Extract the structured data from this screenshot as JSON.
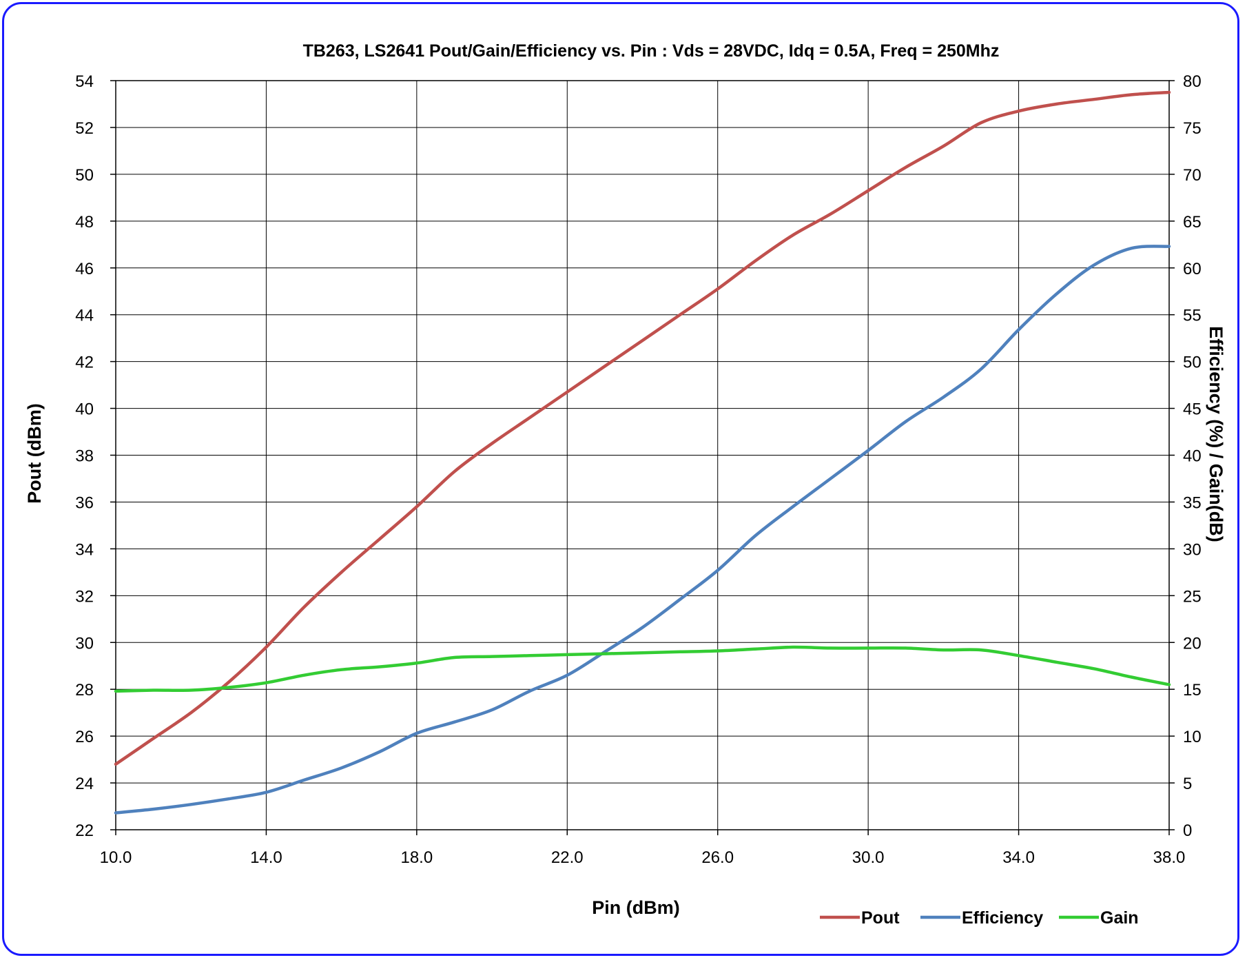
{
  "chart_data": {
    "type": "line",
    "title": "TB263, LS2641 Pout/Gain/Efficiency vs. Pin : Vds = 28VDC, Idq = 0.5A, Freq = 250Mhz",
    "xlabel": "Pin (dBm)",
    "ylabel": "Pout (dBm)",
    "y2label": "Efficiency (%) / Gain(dB)",
    "xlim": [
      10,
      38
    ],
    "ylim": [
      22,
      54
    ],
    "y2lim": [
      0,
      80
    ],
    "grid": true,
    "legend_position": "bottom-right",
    "x_ticks": [
      "10.0",
      "14.0",
      "18.0",
      "22.0",
      "26.0",
      "30.0",
      "34.0",
      "38.0"
    ],
    "y_ticks": [
      "22",
      "24",
      "26",
      "28",
      "30",
      "32",
      "34",
      "36",
      "38",
      "40",
      "42",
      "44",
      "46",
      "48",
      "50",
      "52",
      "54"
    ],
    "y2_ticks": [
      "0",
      "5",
      "10",
      "15",
      "20",
      "25",
      "30",
      "35",
      "40",
      "45",
      "50",
      "55",
      "60",
      "65",
      "70",
      "75",
      "80"
    ],
    "series": [
      {
        "name": "Pout",
        "axis": "left",
        "color": "#c0504d",
        "x": [
          10,
          11,
          12,
          13,
          14,
          15,
          16,
          17,
          18,
          19,
          20,
          21,
          22,
          23,
          24,
          25,
          26,
          27,
          28,
          29,
          30,
          31,
          32,
          33,
          34,
          35,
          36,
          37,
          38
        ],
        "values": [
          24.8,
          25.9,
          27.0,
          28.3,
          29.8,
          31.5,
          33.0,
          34.4,
          35.8,
          37.3,
          38.5,
          39.6,
          40.7,
          41.8,
          42.9,
          44.0,
          45.1,
          46.3,
          47.4,
          48.3,
          49.3,
          50.3,
          51.2,
          52.2,
          52.7,
          53.0,
          53.2,
          53.4,
          53.5
        ]
      },
      {
        "name": "Efficiency",
        "axis": "right",
        "color": "#4f81bd",
        "x": [
          10,
          11,
          12,
          13,
          14,
          15,
          16,
          17,
          18,
          19,
          20,
          21,
          22,
          23,
          24,
          25,
          26,
          27,
          28,
          29,
          30,
          31,
          32,
          33,
          34,
          35,
          36,
          37,
          38
        ],
        "values": [
          1.8,
          2.2,
          2.7,
          3.3,
          4.0,
          5.3,
          6.6,
          8.3,
          10.3,
          11.5,
          12.8,
          14.8,
          16.5,
          19.0,
          21.6,
          24.6,
          27.7,
          31.4,
          34.5,
          37.5,
          40.5,
          43.6,
          46.2,
          49.2,
          53.4,
          57.2,
          60.3,
          62.1,
          62.3
        ]
      },
      {
        "name": "Gain",
        "axis": "right",
        "color": "#33cc33",
        "x": [
          10,
          11,
          12,
          13,
          14,
          15,
          16,
          17,
          18,
          19,
          20,
          21,
          22,
          23,
          24,
          25,
          26,
          27,
          28,
          29,
          30,
          31,
          32,
          33,
          34,
          35,
          36,
          37,
          38
        ],
        "values": [
          14.8,
          14.9,
          14.9,
          15.2,
          15.7,
          16.5,
          17.1,
          17.4,
          17.8,
          18.4,
          18.5,
          18.6,
          18.7,
          18.8,
          18.9,
          19.0,
          19.1,
          19.3,
          19.5,
          19.4,
          19.4,
          19.4,
          19.2,
          19.2,
          18.6,
          17.9,
          17.2,
          16.3,
          15.5
        ]
      }
    ]
  }
}
